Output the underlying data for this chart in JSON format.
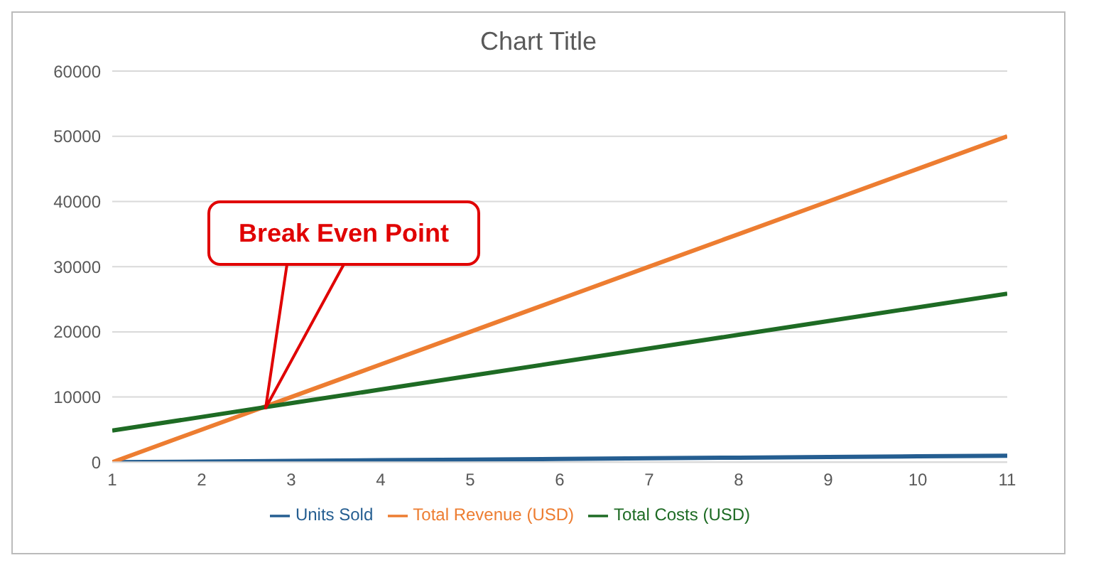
{
  "chart_data": {
    "type": "line",
    "title": "Chart Title",
    "x": [
      1,
      2,
      3,
      4,
      5,
      6,
      7,
      8,
      9,
      10,
      11
    ],
    "xlim": [
      1,
      11
    ],
    "xticks": [
      1,
      2,
      3,
      4,
      5,
      6,
      7,
      8,
      9,
      10,
      11
    ],
    "ylim": [
      0,
      60000
    ],
    "yticks": [
      0,
      10000,
      20000,
      30000,
      40000,
      50000,
      60000
    ],
    "grid": "y",
    "legend": "bottom",
    "marker": "none",
    "line_style": "solid",
    "series": [
      {
        "name": "Units Sold",
        "color": "#255e91",
        "values": [
          0,
          100,
          200,
          300,
          400,
          500,
          600,
          700,
          800,
          900,
          1000
        ]
      },
      {
        "name": "Total Revenue (USD)",
        "color": "#ed7d31",
        "values": [
          0,
          5000,
          10000,
          15000,
          20000,
          25000,
          30000,
          35000,
          40000,
          45000,
          50000
        ]
      },
      {
        "name": "Total Costs (USD)",
        "color": "#1e6b24",
        "values": [
          4850,
          6950,
          9050,
          11150,
          13250,
          15350,
          17450,
          19550,
          21650,
          23750,
          25850
        ]
      }
    ],
    "annotations": [
      "Break Even Point"
    ]
  }
}
